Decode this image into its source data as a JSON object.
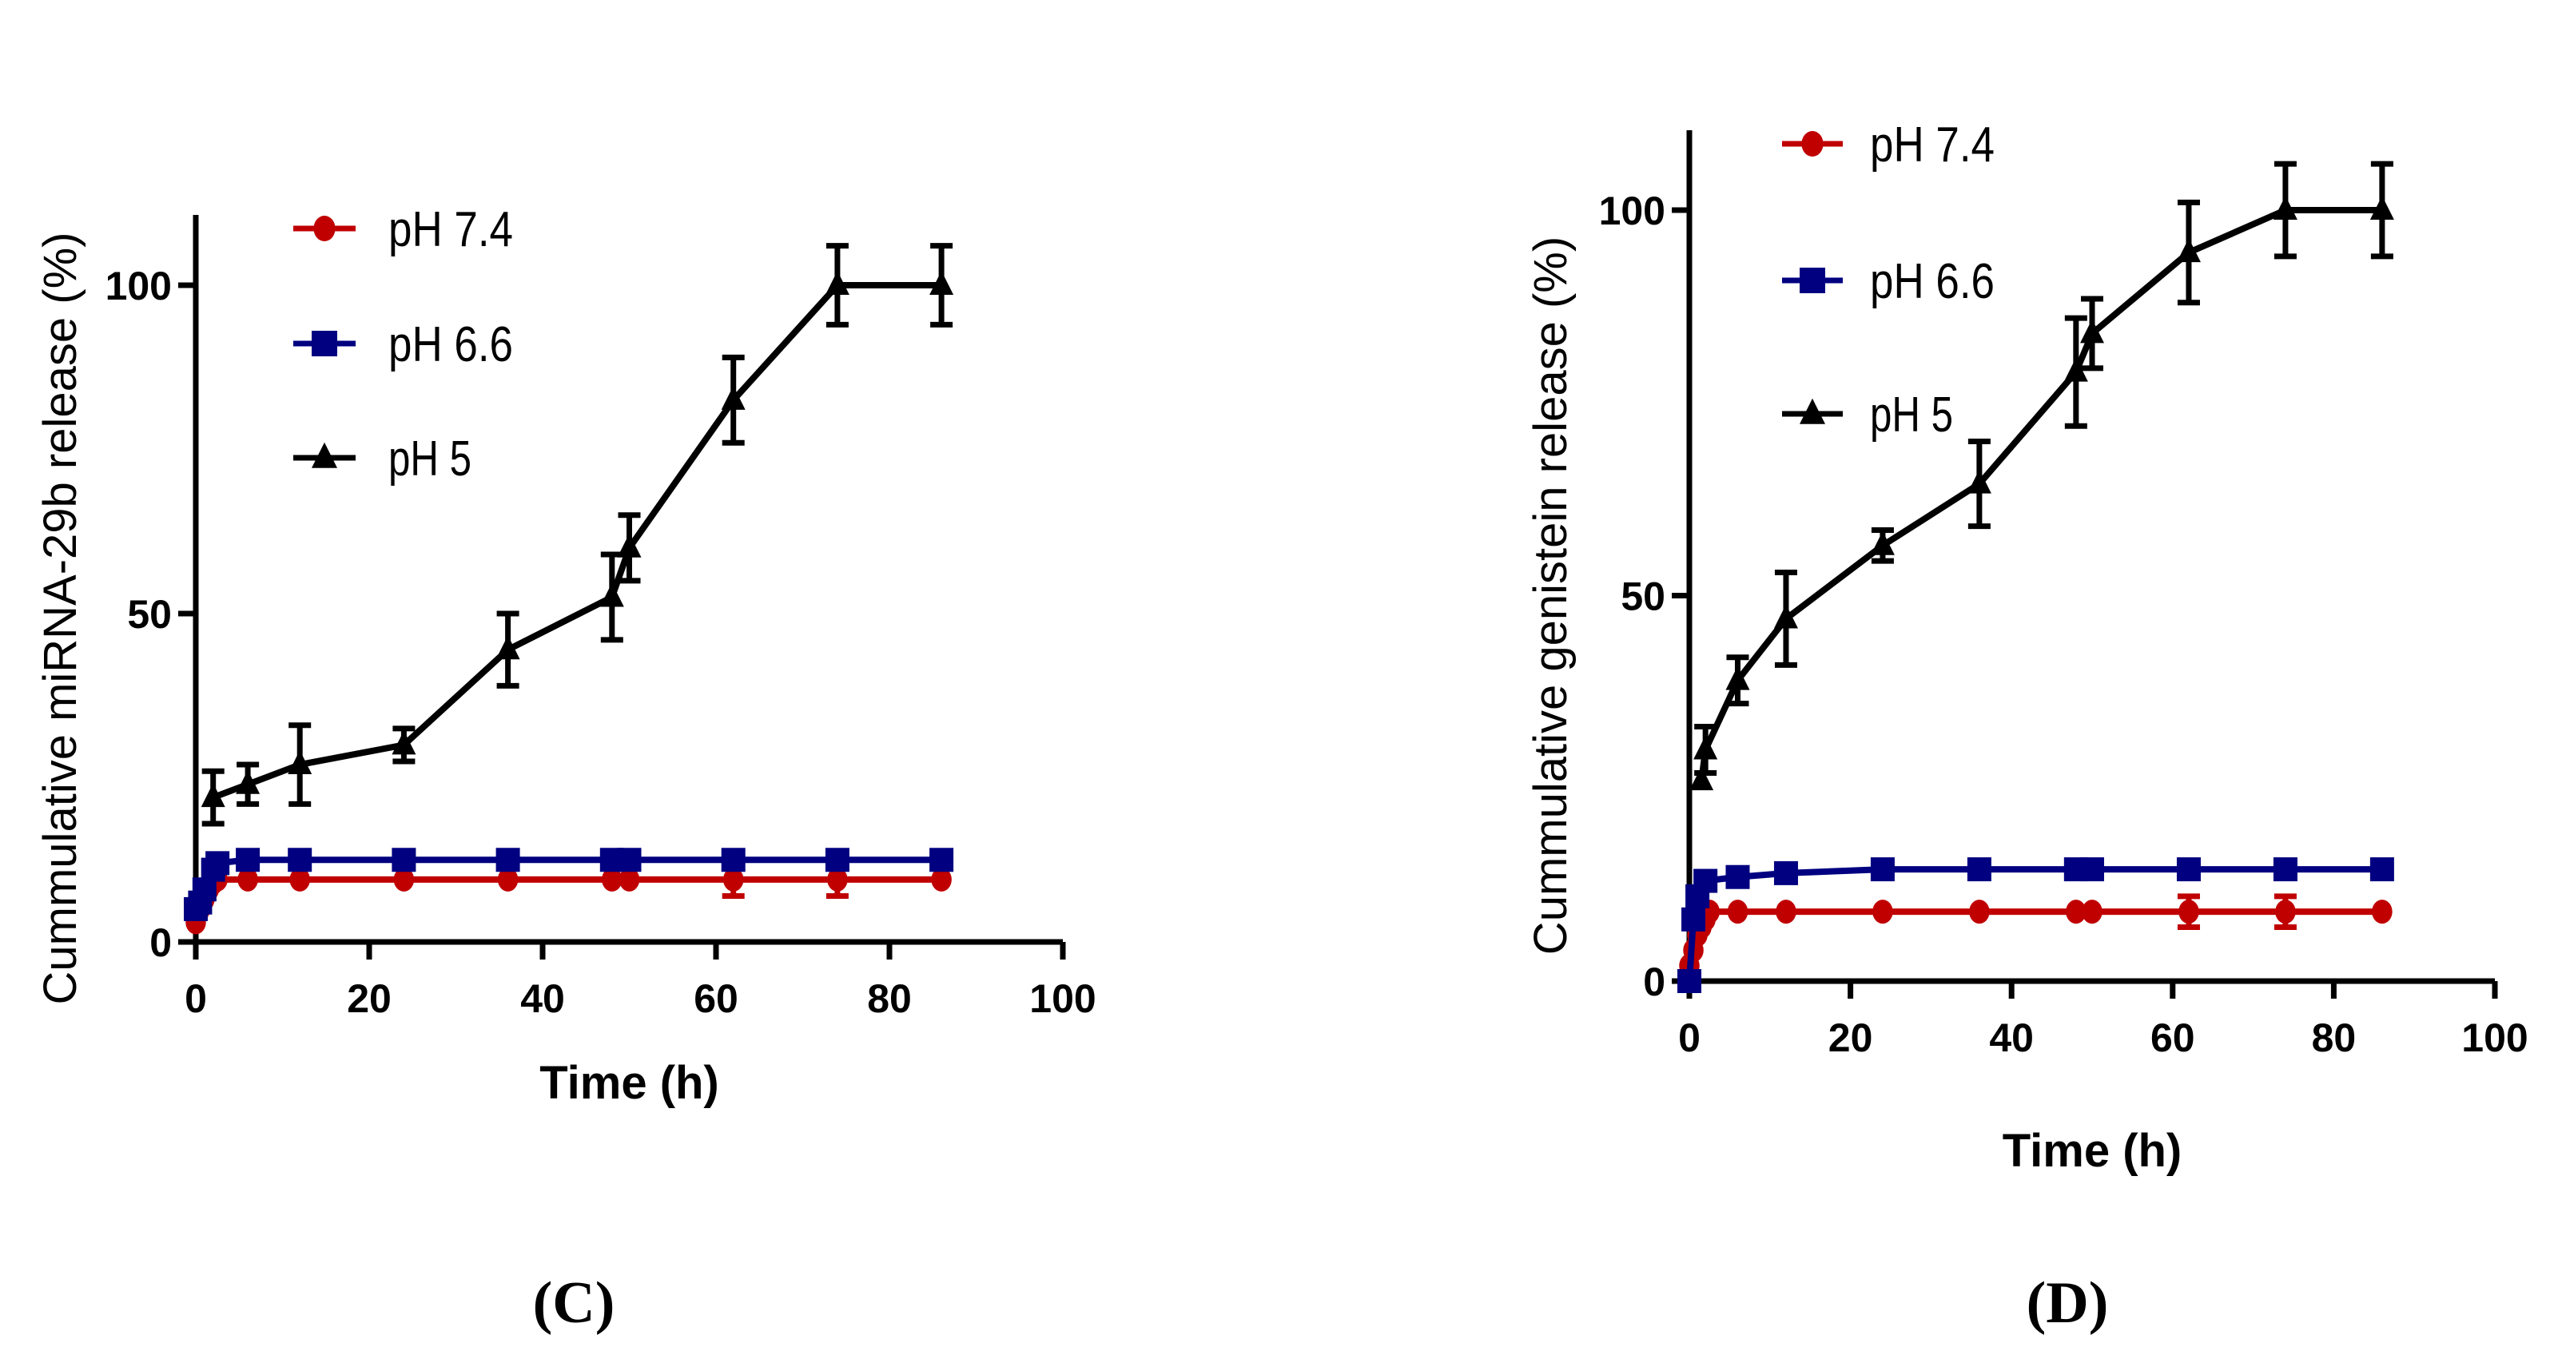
{
  "chart_data": [
    {
      "type": "line",
      "panel_label": "(C)",
      "xlabel": "Time (h)",
      "ylabel": "Cummulative miRNA-29b release (%)",
      "xlim": [
        0,
        100
      ],
      "ylim": [
        0,
        110
      ],
      "xticks": [
        "0",
        "20",
        "40",
        "60",
        "80",
        "100"
      ],
      "yticks": [
        "0",
        "50",
        "100"
      ],
      "legend_position": "top-left",
      "series": [
        {
          "name": "pH 7.4",
          "color": "#c00000",
          "marker": "circle",
          "x": [
            0,
            0.5,
            1,
            1.5,
            2,
            2.5,
            6,
            12,
            24,
            36,
            48,
            50,
            62,
            74,
            86
          ],
          "y": [
            3,
            5,
            6.5,
            8,
            9,
            9.5,
            9.5,
            9.5,
            9.5,
            9.5,
            9.5,
            9.5,
            9.5,
            9.5,
            9.5
          ],
          "err": [
            0,
            0,
            0,
            0,
            0,
            0,
            0,
            0,
            0,
            0,
            0,
            0,
            2.5,
            2.5,
            0
          ]
        },
        {
          "name": "pH 6.6",
          "color": "#000080",
          "marker": "square",
          "x": [
            0,
            0.5,
            1,
            2,
            2.5,
            6,
            12,
            24,
            36,
            48,
            50,
            62,
            74,
            86
          ],
          "y": [
            5,
            6,
            8,
            11,
            12,
            12.5,
            12.5,
            12.5,
            12.5,
            12.5,
            12.5,
            12.5,
            12.5,
            12.5
          ],
          "err": [
            0,
            0,
            0,
            0,
            0,
            0,
            0,
            0,
            0,
            0,
            0,
            0,
            0,
            0
          ]
        },
        {
          "name": "pH 5",
          "color": "#000000",
          "marker": "triangle",
          "x": [
            2,
            6,
            12,
            24,
            36,
            48,
            50,
            62,
            74,
            86
          ],
          "y": [
            22,
            24,
            27,
            30,
            44.5,
            52.5,
            60,
            82.5,
            100,
            100
          ],
          "err": [
            4,
            3,
            6,
            2.5,
            5.5,
            6.5,
            5,
            6.5,
            6,
            6
          ]
        }
      ]
    },
    {
      "type": "line",
      "panel_label": "(D)",
      "xlabel": "Time (h)",
      "ylabel": "Cummulative genistein release (%)",
      "xlim": [
        0,
        100
      ],
      "ylim": [
        0,
        110
      ],
      "xticks": [
        "0",
        "20",
        "40",
        "60",
        "80",
        "100"
      ],
      "yticks": [
        "0",
        "50",
        "100"
      ],
      "legend_position": "top-left",
      "series": [
        {
          "name": "pH 7.4",
          "color": "#c00000",
          "marker": "circle",
          "x": [
            0,
            0.5,
            1,
            1.5,
            2,
            2.5,
            6,
            12,
            24,
            36,
            48,
            50,
            62,
            74,
            86
          ],
          "y": [
            2,
            4,
            6,
            7,
            8,
            9,
            9,
            9,
            9,
            9,
            9,
            9,
            9,
            9,
            9
          ],
          "err": [
            0,
            0,
            0,
            0,
            0,
            0,
            0,
            0,
            0,
            0,
            0,
            0,
            2,
            2,
            0
          ]
        },
        {
          "name": "pH 6.6",
          "color": "#000080",
          "marker": "square",
          "x": [
            0,
            0.5,
            1,
            2,
            6,
            12,
            24,
            36,
            48,
            50,
            62,
            74,
            86
          ],
          "y": [
            0,
            8,
            11,
            13,
            13.5,
            14,
            14.5,
            14.5,
            14.5,
            14.5,
            14.5,
            14.5,
            14.5
          ],
          "err": [
            0,
            0,
            0,
            0,
            0,
            0,
            0,
            0,
            0,
            0,
            0,
            0,
            0
          ]
        },
        {
          "name": "pH 5",
          "color": "#000000",
          "marker": "triangle",
          "x": [
            1.5,
            2,
            6,
            12,
            24,
            36,
            48,
            50,
            62,
            74,
            86
          ],
          "y": [
            26,
            30,
            39,
            47,
            56.5,
            64.5,
            79,
            84,
            94.5,
            100,
            100
          ],
          "err": [
            0,
            3,
            3,
            6,
            2,
            5.5,
            7,
            4.5,
            6.5,
            6,
            6
          ]
        }
      ]
    }
  ]
}
